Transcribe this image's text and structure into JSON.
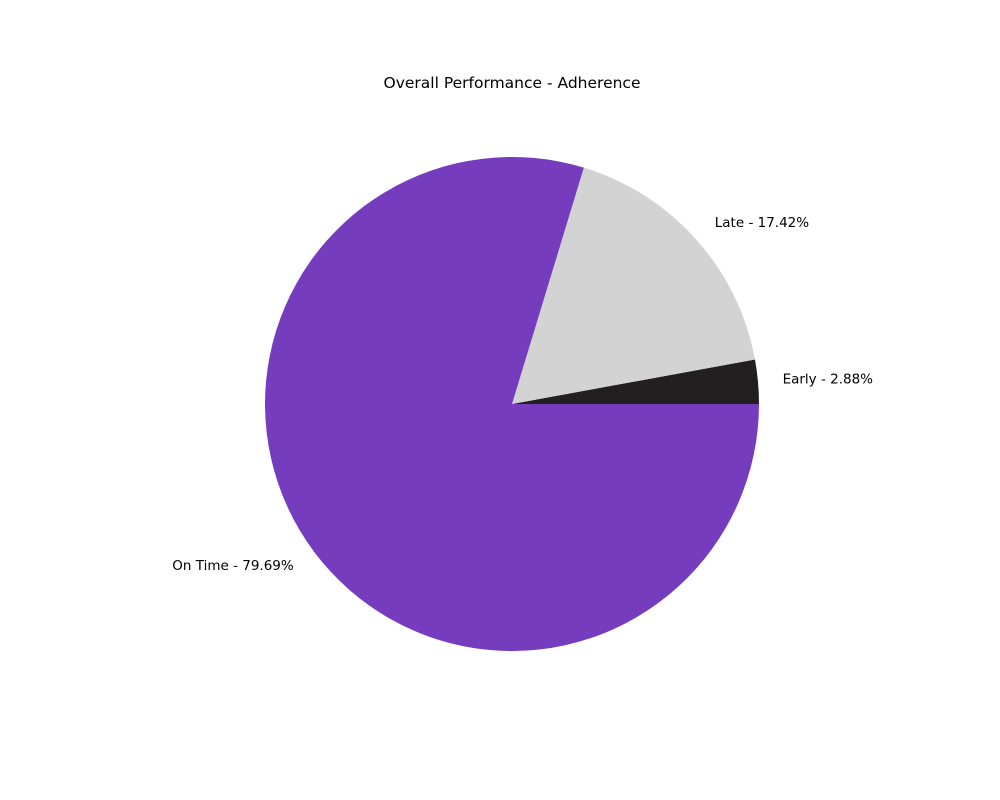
{
  "chart_data": {
    "type": "pie",
    "title": "Overall Performance - Adherence",
    "start_angle_deg": 0,
    "direction": "counterclockwise",
    "slices": [
      {
        "label": "Early - 2.88%",
        "name": "Early",
        "value": 2.88,
        "color": "#231f20"
      },
      {
        "label": "Late - 17.42%",
        "name": "Late",
        "value": 17.42,
        "color": "#d3d3d3"
      },
      {
        "label": "On Time - 79.69%",
        "name": "On Time",
        "value": 79.69,
        "color": "#753dbd"
      }
    ]
  }
}
